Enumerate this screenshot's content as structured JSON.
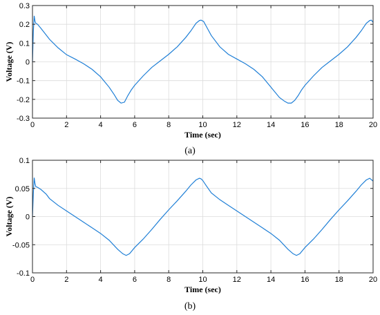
{
  "chart_data": [
    {
      "type": "line",
      "caption": "(a)",
      "xlabel": "Time (sec)",
      "ylabel": "Voltage (V)",
      "xlim": [
        0,
        20
      ],
      "ylim": [
        -0.3,
        0.3
      ],
      "xticks": [
        "0",
        "2",
        "4",
        "6",
        "8",
        "10",
        "12",
        "14",
        "16",
        "18",
        "20"
      ],
      "xtick_values": [
        0,
        2,
        4,
        6,
        8,
        10,
        12,
        14,
        16,
        18,
        20
      ],
      "yticks": [
        "-0.3",
        "-0.2",
        "-0.1",
        "0",
        "0.1",
        "0.2",
        "0.3"
      ],
      "ytick_values": [
        -0.3,
        -0.2,
        -0.1,
        0,
        0.1,
        0.2,
        0.3
      ],
      "grid": true,
      "series": [
        {
          "color": "#1f7fd6",
          "x": [
            0,
            0.05,
            0.1,
            0.15,
            0.2,
            0.3,
            0.5,
            0.7,
            1,
            1.5,
            2,
            2.5,
            3,
            3.5,
            4,
            4.5,
            4.8,
            5,
            5.2,
            5.4,
            5.6,
            5.8,
            6,
            6.5,
            7,
            7.5,
            8,
            8.5,
            9,
            9.3,
            9.6,
            9.8,
            9.9,
            10.05,
            10.2,
            10.5,
            11,
            11.5,
            12,
            12.5,
            13,
            13.5,
            14,
            14.5,
            14.8,
            15,
            15.2,
            15.4,
            15.6,
            15.8,
            16,
            16.5,
            17,
            17.5,
            18,
            18.5,
            19,
            19.3,
            19.6,
            19.8,
            19.9,
            20
          ],
          "y": [
            0.0,
            0.16,
            0.245,
            0.215,
            0.205,
            0.2,
            0.178,
            0.155,
            0.12,
            0.075,
            0.038,
            0.015,
            -0.01,
            -0.04,
            -0.08,
            -0.135,
            -0.175,
            -0.205,
            -0.22,
            -0.215,
            -0.18,
            -0.15,
            -0.125,
            -0.075,
            -0.03,
            0.005,
            0.04,
            0.08,
            0.13,
            0.165,
            0.205,
            0.22,
            0.222,
            0.215,
            0.19,
            0.14,
            0.08,
            0.04,
            0.015,
            -0.01,
            -0.04,
            -0.08,
            -0.135,
            -0.19,
            -0.21,
            -0.22,
            -0.22,
            -0.205,
            -0.18,
            -0.15,
            -0.125,
            -0.075,
            -0.03,
            0.005,
            0.04,
            0.08,
            0.13,
            0.165,
            0.205,
            0.22,
            0.222,
            0.21
          ]
        }
      ]
    },
    {
      "type": "line",
      "caption": "(b)",
      "xlabel": "Time (sec)",
      "ylabel": "Voltage (V)",
      "xlim": [
        0,
        20
      ],
      "ylim": [
        -0.1,
        0.1
      ],
      "xticks": [
        "0",
        "2",
        "4",
        "6",
        "8",
        "10",
        "12",
        "14",
        "16",
        "18",
        "20"
      ],
      "xtick_values": [
        0,
        2,
        4,
        6,
        8,
        10,
        12,
        14,
        16,
        18,
        20
      ],
      "yticks": [
        "-0.1",
        "-0.05",
        "0",
        "0.05",
        "0.1"
      ],
      "ytick_values": [
        -0.1,
        -0.05,
        0,
        0.05,
        0.1
      ],
      "grid": true,
      "series": [
        {
          "color": "#1f7fd6",
          "x": [
            0,
            0.05,
            0.1,
            0.15,
            0.2,
            0.3,
            0.5,
            0.8,
            1,
            1.5,
            2,
            2.5,
            3,
            3.5,
            4,
            4.5,
            5,
            5.3,
            5.5,
            5.7,
            6,
            6.5,
            7,
            7.5,
            8,
            8.5,
            9,
            9.3,
            9.6,
            9.8,
            9.9,
            10,
            10.2,
            10.5,
            11,
            11.5,
            12,
            12.5,
            13,
            13.5,
            14,
            14.5,
            15,
            15.3,
            15.5,
            15.7,
            16,
            16.5,
            17,
            17.5,
            18,
            18.5,
            19,
            19.3,
            19.6,
            19.8,
            20
          ],
          "y": [
            0.0,
            0.04,
            0.069,
            0.058,
            0.053,
            0.052,
            0.048,
            0.04,
            0.032,
            0.02,
            0.01,
            0.0,
            -0.01,
            -0.02,
            -0.03,
            -0.042,
            -0.058,
            -0.066,
            -0.069,
            -0.066,
            -0.055,
            -0.04,
            -0.023,
            -0.005,
            0.012,
            0.028,
            0.045,
            0.056,
            0.065,
            0.068,
            0.067,
            0.064,
            0.055,
            0.042,
            0.03,
            0.02,
            0.01,
            0.0,
            -0.01,
            -0.02,
            -0.03,
            -0.042,
            -0.058,
            -0.066,
            -0.069,
            -0.066,
            -0.055,
            -0.04,
            -0.023,
            -0.005,
            0.012,
            0.028,
            0.045,
            0.056,
            0.065,
            0.068,
            0.063
          ]
        }
      ]
    }
  ]
}
